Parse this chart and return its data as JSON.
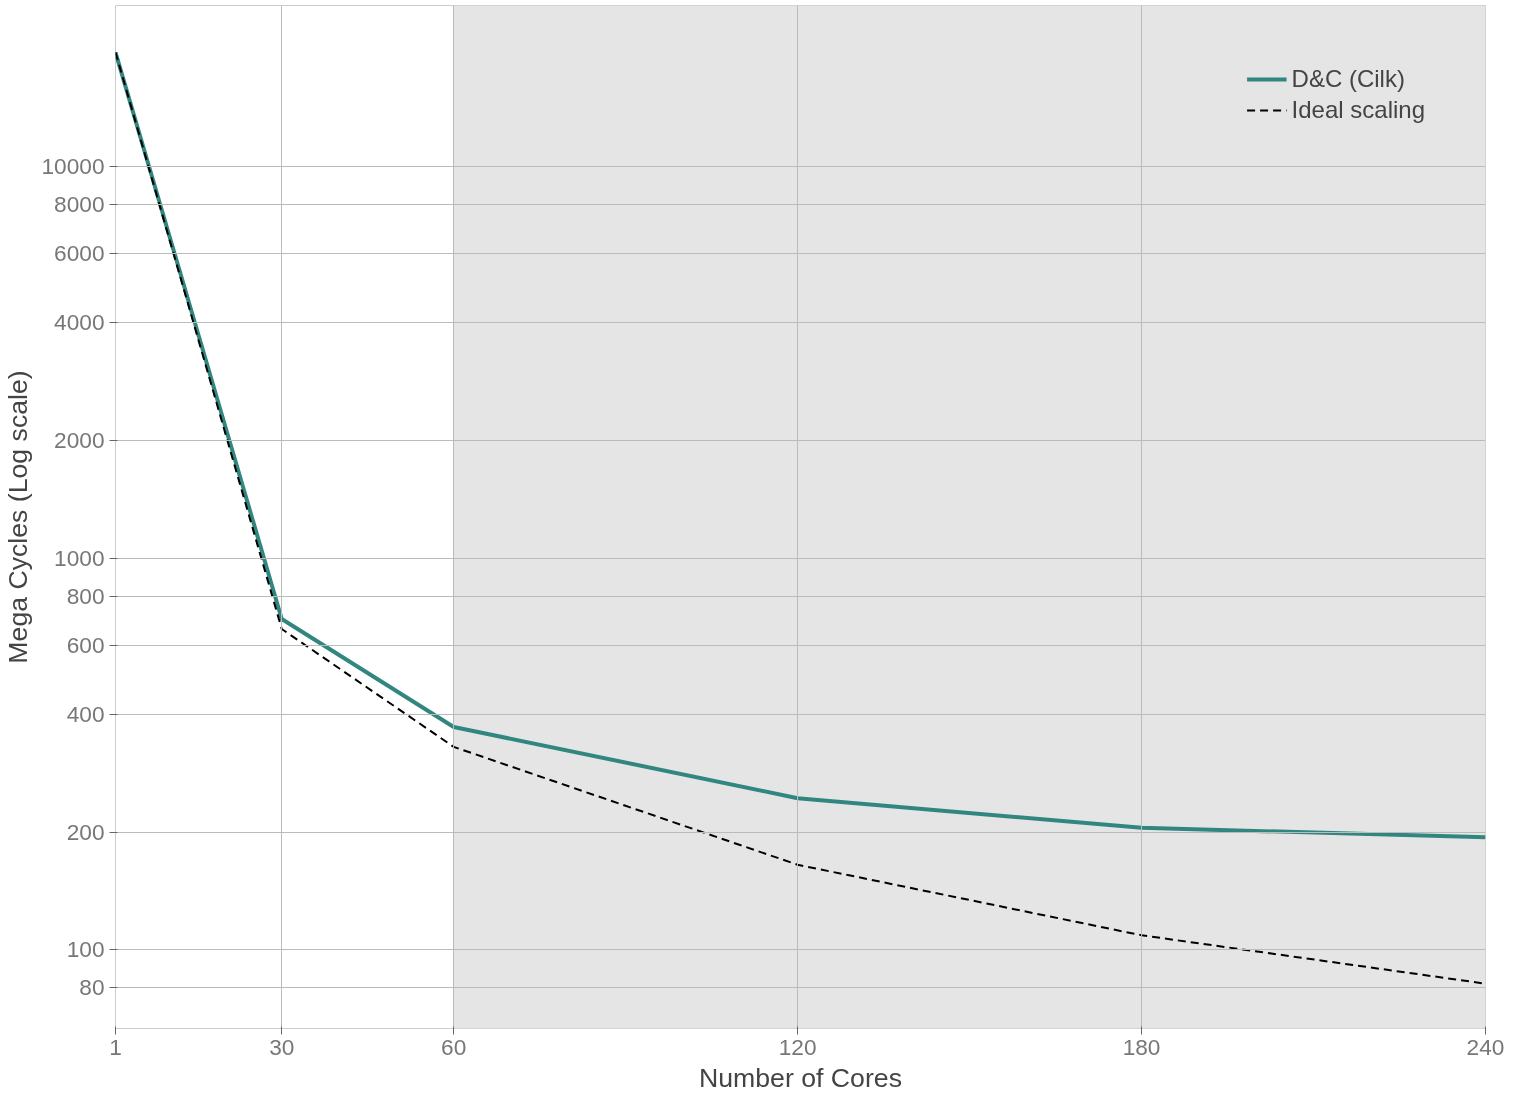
{
  "chart_data": {
    "type": "line",
    "xlabel": "Number of Cores",
    "ylabel": "Mega Cycles (Log scale)",
    "x": [
      1,
      30,
      60,
      120,
      180,
      240
    ],
    "series": [
      {
        "name": "D&C (Cilk)",
        "color": "#31877f",
        "line_style": "solid",
        "values": [
          19600,
          700,
          371,
          244,
          205,
          194
        ]
      },
      {
        "name": "Ideal scaling",
        "color": "#000000",
        "line_style": "dashed",
        "values": [
          19600,
          660,
          330,
          165,
          109,
          82
        ]
      }
    ],
    "log": "y",
    "xlim": [
      1,
      240
    ],
    "xticks": [
      1,
      30,
      60,
      120,
      180,
      240
    ],
    "ylim": [
      63,
      25800
    ],
    "yticks": [
      80,
      100,
      200,
      400,
      600,
      800,
      1000,
      2000,
      4000,
      6000,
      8000,
      10000
    ],
    "bands": [
      {
        "axis": "x",
        "from": 60,
        "to": 240,
        "color": "#e5e5e5"
      }
    ],
    "grid": true,
    "legend": "top right",
    "marker": "none"
  }
}
